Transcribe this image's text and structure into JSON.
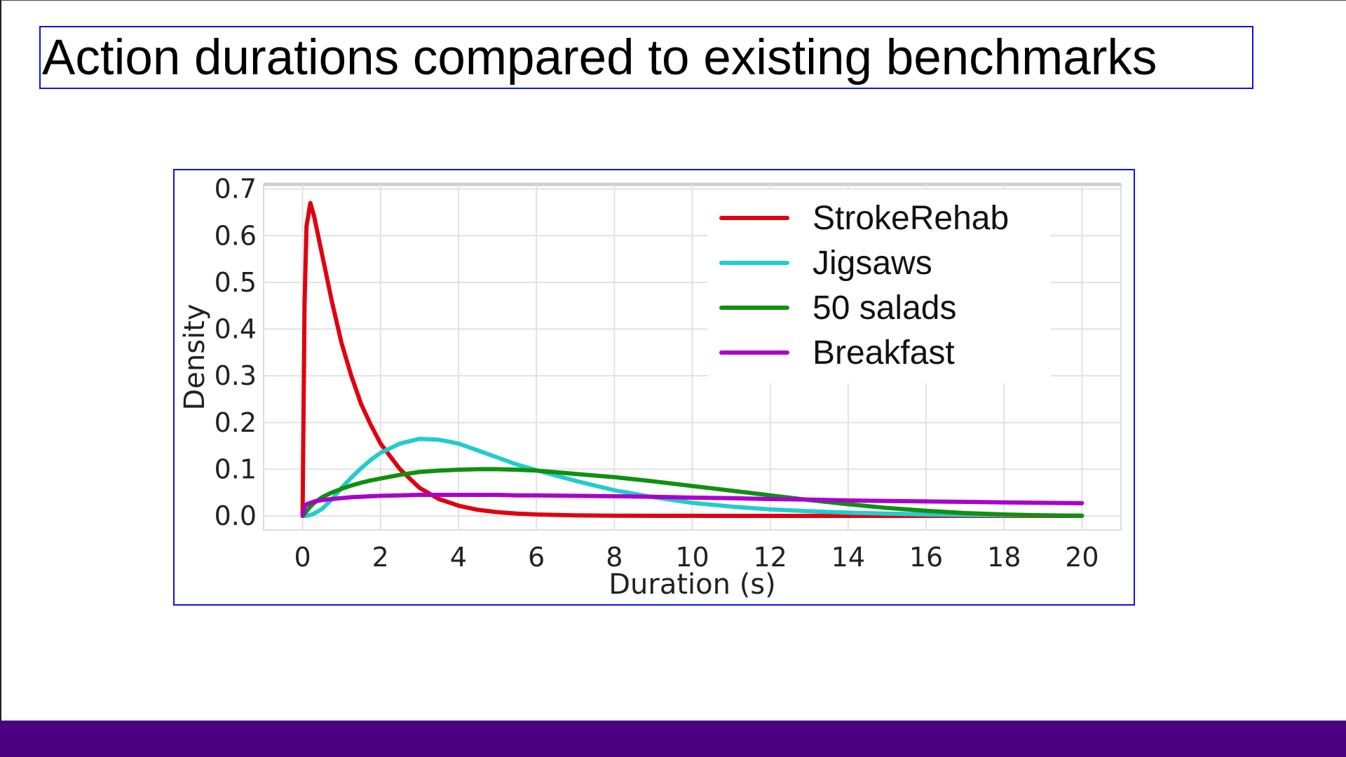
{
  "slide": {
    "title": "Action durations compared to existing benchmarks",
    "colors": {
      "footer_bar": "#4b0082",
      "frame_border": "#1010ee"
    }
  },
  "chart_data": {
    "type": "line",
    "title": "",
    "xlabel": "Duration (s)",
    "ylabel": "Density",
    "xlim": [
      -1,
      21
    ],
    "ylim": [
      -0.03,
      0.71
    ],
    "xticks": [
      0,
      2,
      4,
      6,
      8,
      10,
      12,
      14,
      16,
      18,
      20
    ],
    "xtick_labels": [
      "0",
      "2",
      "4",
      "6",
      "8",
      "10",
      "12",
      "14",
      "16",
      "18",
      "20"
    ],
    "yticks": [
      0.0,
      0.1,
      0.2,
      0.3,
      0.4,
      0.5,
      0.6,
      0.7
    ],
    "ytick_labels": [
      "0.0",
      "0.1",
      "0.2",
      "0.3",
      "0.4",
      "0.5",
      "0.6",
      "0.7"
    ],
    "grid": true,
    "legend_position": "top-right",
    "x": [
      0,
      0.05,
      0.1,
      0.2,
      0.3,
      0.5,
      0.75,
      1,
      1.25,
      1.5,
      1.75,
      2,
      2.5,
      3,
      3.5,
      4,
      4.5,
      5,
      5.5,
      6,
      7,
      8,
      9,
      10,
      11,
      12,
      13,
      14,
      15,
      16,
      17,
      18,
      19,
      20
    ],
    "series": [
      {
        "name": "StrokeRehab",
        "color": "#e0000f",
        "values": [
          0,
          0.45,
          0.62,
          0.67,
          0.64,
          0.56,
          0.46,
          0.37,
          0.3,
          0.24,
          0.195,
          0.155,
          0.1,
          0.06,
          0.036,
          0.022,
          0.013,
          0.008,
          0.005,
          0.003,
          0.001,
          0.0005,
          0.0002,
          0.0001,
          0,
          0,
          0,
          0,
          0,
          0,
          0,
          0,
          0,
          0
        ]
      },
      {
        "name": "Jigsaws",
        "color": "#22cccc",
        "values": [
          0,
          0,
          0,
          0.002,
          0.005,
          0.015,
          0.035,
          0.06,
          0.082,
          0.102,
          0.12,
          0.135,
          0.155,
          0.165,
          0.163,
          0.155,
          0.14,
          0.125,
          0.11,
          0.098,
          0.075,
          0.055,
          0.04,
          0.028,
          0.02,
          0.014,
          0.01,
          0.007,
          0.005,
          0.003,
          0.002,
          0.0015,
          0.001,
          0.0005
        ]
      },
      {
        "name": "50 salads",
        "color": "#109010",
        "values": [
          0,
          0.005,
          0.01,
          0.02,
          0.028,
          0.04,
          0.05,
          0.058,
          0.065,
          0.071,
          0.076,
          0.08,
          0.088,
          0.094,
          0.097,
          0.099,
          0.1,
          0.1,
          0.099,
          0.097,
          0.09,
          0.083,
          0.074,
          0.064,
          0.054,
          0.044,
          0.034,
          0.025,
          0.017,
          0.011,
          0.006,
          0.003,
          0.001,
          0.0005
        ]
      },
      {
        "name": "Breakfast",
        "color": "#aa00cc",
        "values": [
          0,
          0.02,
          0.025,
          0.028,
          0.031,
          0.034,
          0.036,
          0.038,
          0.04,
          0.041,
          0.042,
          0.043,
          0.044,
          0.045,
          0.045,
          0.045,
          0.045,
          0.045,
          0.044,
          0.044,
          0.043,
          0.042,
          0.041,
          0.039,
          0.038,
          0.036,
          0.035,
          0.033,
          0.032,
          0.031,
          0.03,
          0.029,
          0.028,
          0.027
        ]
      }
    ]
  }
}
